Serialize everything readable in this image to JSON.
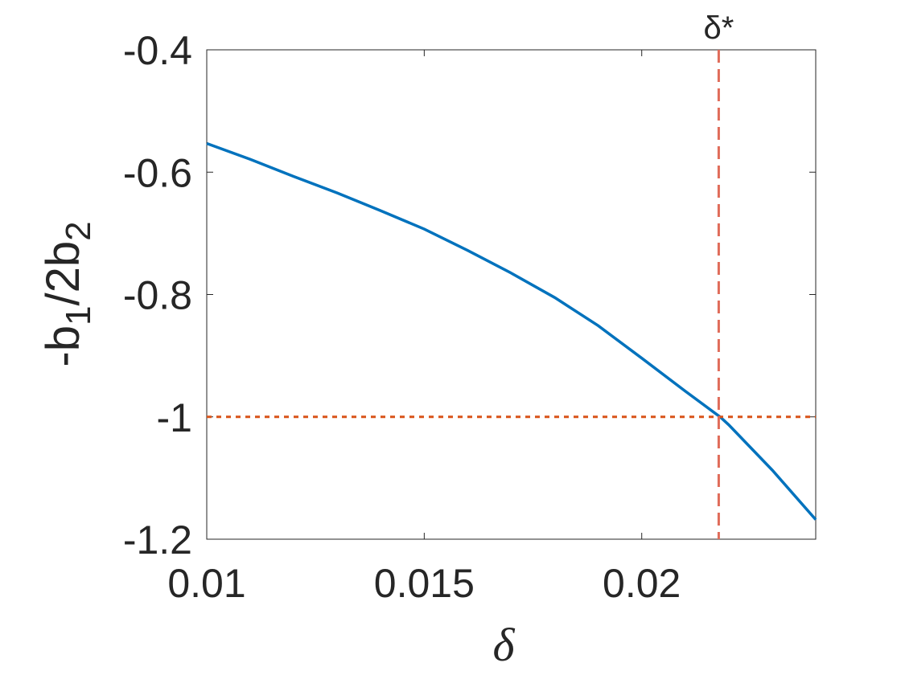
{
  "chart_data": {
    "type": "line",
    "xlabel": "δ",
    "ylabel": [
      "-b",
      "1",
      "/2b",
      "2"
    ],
    "xlim": [
      0.01,
      0.024
    ],
    "xticks": [
      0.01,
      0.015,
      0.02
    ],
    "ylim": [
      -1.2,
      -0.4
    ],
    "yticks": [
      -1.2,
      -1,
      -0.8,
      -0.6,
      -0.4
    ],
    "series": [
      {
        "color": "#0072bd",
        "x": [
          0.01,
          0.011,
          0.012,
          0.013,
          0.014,
          0.015,
          0.016,
          0.017,
          0.018,
          0.019,
          0.02,
          0.021,
          0.0218,
          0.022,
          0.023,
          0.024
        ],
        "values": [
          -0.553,
          -0.579,
          -0.607,
          -0.634,
          -0.663,
          -0.693,
          -0.728,
          -0.765,
          -0.805,
          -0.851,
          -0.904,
          -0.958,
          -1.0,
          -1.013,
          -1.087,
          -1.168
        ]
      }
    ],
    "hline": {
      "value": -1,
      "color": "#d95319"
    },
    "vline": {
      "value": 0.02177,
      "color": "#e06c5a",
      "label": "δ*"
    }
  }
}
